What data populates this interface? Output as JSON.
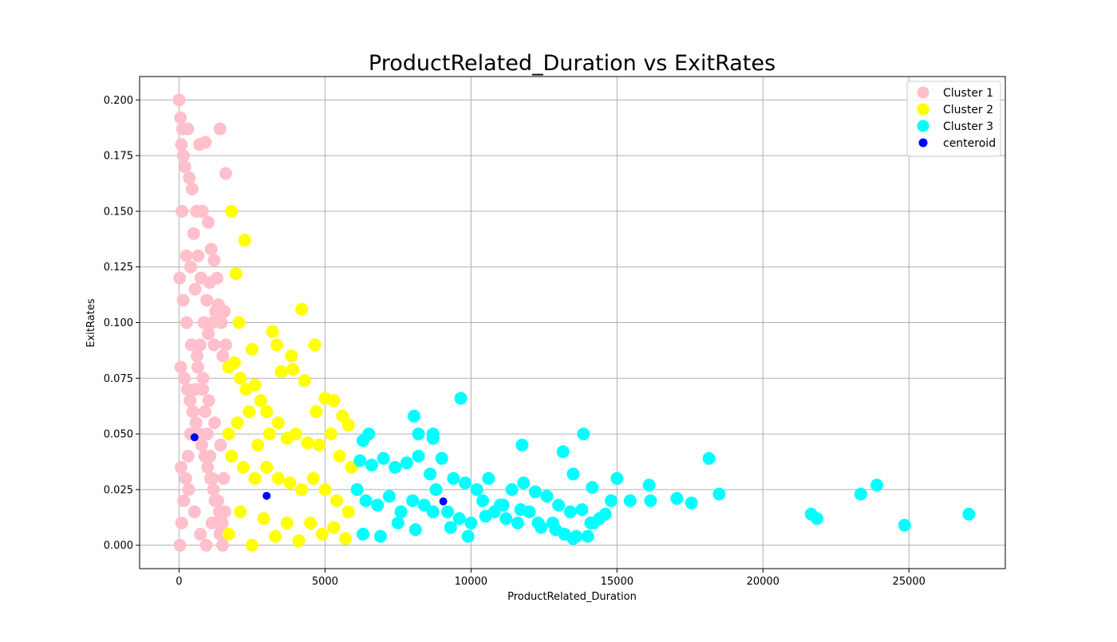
{
  "chart_data": {
    "type": "scatter",
    "title": "ProductRelated_Duration vs ExitRates",
    "xlabel": "ProductRelated_Duration",
    "ylabel": "ExitRates",
    "xlim": [
      -1350,
      28300
    ],
    "ylim": [
      -0.0105,
      0.2105
    ],
    "xticks": [
      0,
      5000,
      10000,
      15000,
      20000,
      25000
    ],
    "xtick_labels": [
      "0",
      "5000",
      "10000",
      "15000",
      "20000",
      "25000"
    ],
    "yticks": [
      0.0,
      0.025,
      0.05,
      0.075,
      0.1,
      0.125,
      0.15,
      0.175,
      0.2
    ],
    "ytick_labels": [
      "0.000",
      "0.025",
      "0.050",
      "0.075",
      "0.100",
      "0.125",
      "0.150",
      "0.175",
      "0.200"
    ],
    "grid": true,
    "legend_position": "top-right",
    "series": [
      {
        "name": "Cluster 1",
        "color": "#ffc0cb",
        "x": [
          0,
          50,
          120,
          300,
          80,
          700,
          900,
          1400,
          1600,
          200,
          450,
          600,
          800,
          1000,
          1100,
          1200,
          1300,
          150,
          350,
          500,
          650,
          750,
          950,
          1050,
          1150,
          1250,
          1350,
          1450,
          1550,
          1600,
          100,
          250,
          400,
          550,
          850,
          1000,
          1200,
          1500,
          60,
          180,
          280,
          380,
          480,
          580,
          680,
          780,
          880,
          980,
          1080,
          1180,
          1280,
          1380,
          1480,
          1580,
          30,
          90,
          160,
          230,
          310,
          390,
          470,
          560,
          640,
          720,
          810,
          890,
          970,
          1060,
          1140,
          1230,
          1310,
          1400,
          1490,
          1570,
          20,
          140,
          260,
          420,
          620,
          820,
          1020,
          1220,
          1420,
          70,
          330,
          530,
          730,
          930,
          1130,
          1330,
          1530
        ],
        "y": [
          0.2,
          0.192,
          0.187,
          0.187,
          0.18,
          0.18,
          0.181,
          0.187,
          0.167,
          0.17,
          0.16,
          0.15,
          0.15,
          0.145,
          0.133,
          0.128,
          0.12,
          0.175,
          0.165,
          0.14,
          0.13,
          0.12,
          0.11,
          0.118,
          0.1,
          0.105,
          0.108,
          0.1,
          0.105,
          0.09,
          0.15,
          0.13,
          0.125,
          0.115,
          0.1,
          0.095,
          0.09,
          0.085,
          0.08,
          0.075,
          0.07,
          0.065,
          0.06,
          0.055,
          0.05,
          0.045,
          0.04,
          0.035,
          0.03,
          0.025,
          0.02,
          0.015,
          0.01,
          0.005,
          0.0,
          0.01,
          0.02,
          0.03,
          0.04,
          0.05,
          0.06,
          0.07,
          0.08,
          0.09,
          0.07,
          0.06,
          0.05,
          0.04,
          0.03,
          0.02,
          0.01,
          0.005,
          0.0,
          0.015,
          0.12,
          0.11,
          0.1,
          0.09,
          0.085,
          0.075,
          0.065,
          0.055,
          0.045,
          0.035,
          0.025,
          0.015,
          0.005,
          0.0,
          0.01,
          0.02,
          0.03
        ]
      },
      {
        "name": "Cluster 2",
        "color": "#ffff00",
        "x": [
          1800,
          2250,
          1950,
          2050,
          2500,
          3200,
          3350,
          3850,
          4200,
          4650,
          1700,
          1900,
          2100,
          2300,
          2600,
          2800,
          3000,
          3500,
          3900,
          4300,
          4700,
          5000,
          5300,
          5600,
          5800,
          1700,
          2000,
          2400,
          2700,
          3100,
          3400,
          3700,
          4000,
          4400,
          4800,
          5200,
          5500,
          5900,
          1800,
          2200,
          2600,
          3000,
          3400,
          3800,
          4200,
          4600,
          5000,
          5400,
          5800,
          2100,
          2900,
          3700,
          4500,
          5300,
          1700,
          2500,
          3300,
          4100,
          4900,
          5700
        ],
        "y": [
          0.15,
          0.137,
          0.122,
          0.1,
          0.088,
          0.096,
          0.09,
          0.085,
          0.106,
          0.09,
          0.08,
          0.082,
          0.075,
          0.07,
          0.072,
          0.065,
          0.06,
          0.078,
          0.079,
          0.074,
          0.06,
          0.066,
          0.065,
          0.058,
          0.054,
          0.05,
          0.055,
          0.06,
          0.045,
          0.05,
          0.055,
          0.048,
          0.05,
          0.046,
          0.045,
          0.05,
          0.04,
          0.035,
          0.04,
          0.035,
          0.03,
          0.035,
          0.03,
          0.028,
          0.025,
          0.03,
          0.025,
          0.02,
          0.015,
          0.015,
          0.012,
          0.01,
          0.01,
          0.008,
          0.005,
          0.0,
          0.004,
          0.002,
          0.005,
          0.003
        ]
      },
      {
        "name": "Cluster 3",
        "color": "#00ffff",
        "x": [
          9650,
          6500,
          6300,
          8050,
          8200,
          8700,
          8700,
          11750,
          13150,
          13850,
          18150,
          13500,
          14150,
          15000,
          16100,
          15450,
          16150,
          17050,
          17550,
          18500,
          21650,
          21850,
          23350,
          23900,
          24850,
          27050,
          6200,
          6600,
          7000,
          7400,
          7800,
          8200,
          8600,
          9000,
          9400,
          9800,
          10200,
          10600,
          11000,
          11400,
          11800,
          12200,
          12600,
          13000,
          13400,
          13800,
          14200,
          14600,
          6100,
          6400,
          6800,
          7200,
          7600,
          8000,
          8400,
          8800,
          9200,
          9600,
          10000,
          10400,
          10800,
          11200,
          11600,
          12000,
          12400,
          12800,
          13200,
          13600,
          14000,
          14400,
          14800,
          6300,
          6900,
          7500,
          8100,
          8700,
          9300,
          9900,
          10500,
          11100,
          11700,
          12300,
          12900,
          13500,
          14100
        ],
        "y": [
          0.066,
          0.05,
          0.047,
          0.058,
          0.05,
          0.05,
          0.048,
          0.045,
          0.042,
          0.05,
          0.039,
          0.032,
          0.026,
          0.03,
          0.027,
          0.02,
          0.02,
          0.021,
          0.019,
          0.023,
          0.014,
          0.012,
          0.023,
          0.027,
          0.009,
          0.014,
          0.038,
          0.036,
          0.039,
          0.035,
          0.037,
          0.04,
          0.032,
          0.039,
          0.03,
          0.028,
          0.025,
          0.03,
          0.018,
          0.025,
          0.028,
          0.024,
          0.022,
          0.018,
          0.015,
          0.016,
          0.01,
          0.014,
          0.025,
          0.02,
          0.018,
          0.022,
          0.015,
          0.02,
          0.018,
          0.025,
          0.015,
          0.012,
          0.01,
          0.02,
          0.015,
          0.012,
          0.01,
          0.015,
          0.008,
          0.01,
          0.005,
          0.004,
          0.004,
          0.012,
          0.02,
          0.005,
          0.004,
          0.01,
          0.007,
          0.015,
          0.008,
          0.004,
          0.013,
          0.018,
          0.016,
          0.01,
          0.007,
          0.003,
          0.01
        ]
      },
      {
        "name": "centeroid",
        "color": "#0000ff",
        "x": [
          530,
          3000,
          9050
        ],
        "y": [
          0.0485,
          0.0222,
          0.0197
        ]
      }
    ]
  }
}
